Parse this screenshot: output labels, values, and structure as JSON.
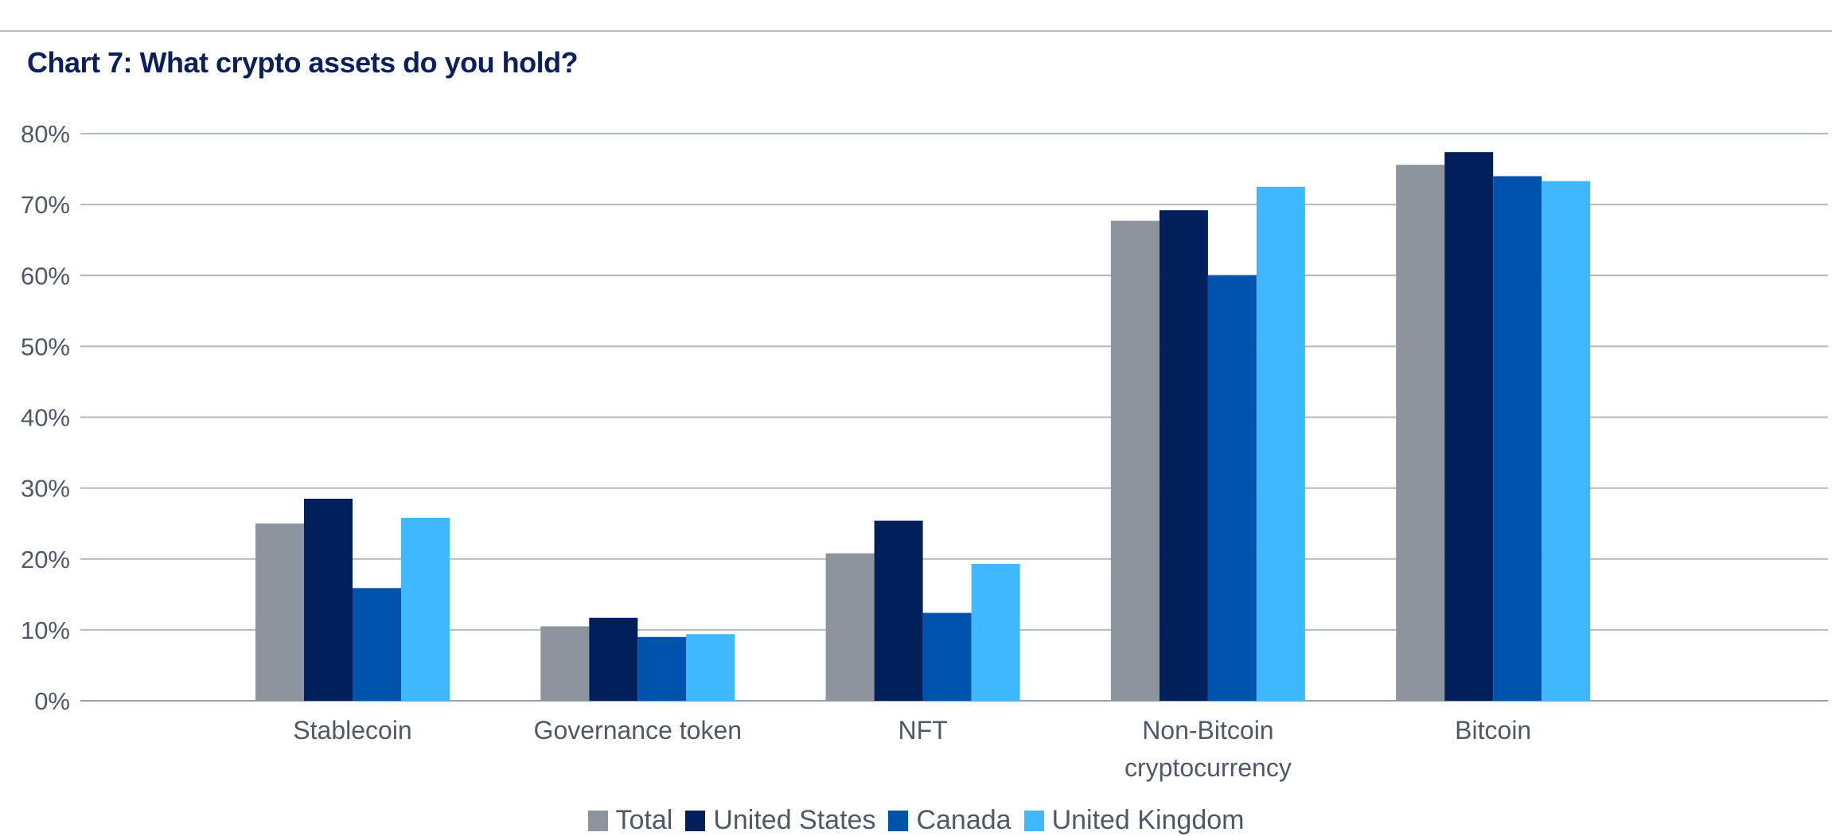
{
  "header": {
    "title": "Chart 7: What crypto assets do you hold?"
  },
  "chart_data": {
    "type": "bar",
    "title": "Chart 7: What crypto assets do you hold?",
    "xlabel": "",
    "ylabel": "",
    "ylim": [
      0,
      80
    ],
    "yticks": [
      "0%",
      "10%",
      "20%",
      "30%",
      "40%",
      "50%",
      "60%",
      "70%",
      "80%"
    ],
    "grid": true,
    "legend_position": "bottom",
    "categories": [
      "Stablecoin",
      "Governance token",
      "NFT",
      "Non-Bitcoin cryptocurrency",
      "Bitcoin"
    ],
    "category_label_lines": [
      [
        "Stablecoin"
      ],
      [
        "Governance token"
      ],
      [
        "NFT"
      ],
      [
        "Non-Bitcoin",
        "cryptocurrency"
      ],
      [
        "Bitcoin"
      ]
    ],
    "series": [
      {
        "name": "Total",
        "color": "#8d949e",
        "values": [
          25.0,
          10.5,
          20.8,
          67.7,
          75.6
        ]
      },
      {
        "name": "United States",
        "color": "#001f5b",
        "values": [
          28.5,
          11.7,
          25.4,
          69.2,
          77.4
        ]
      },
      {
        "name": "Canada",
        "color": "#0053ad",
        "values": [
          15.9,
          9.0,
          12.4,
          60.0,
          74.0
        ]
      },
      {
        "name": "United Kingdom",
        "color": "#40b8ff",
        "values": [
          25.8,
          9.4,
          19.3,
          72.5,
          73.3
        ]
      }
    ]
  }
}
